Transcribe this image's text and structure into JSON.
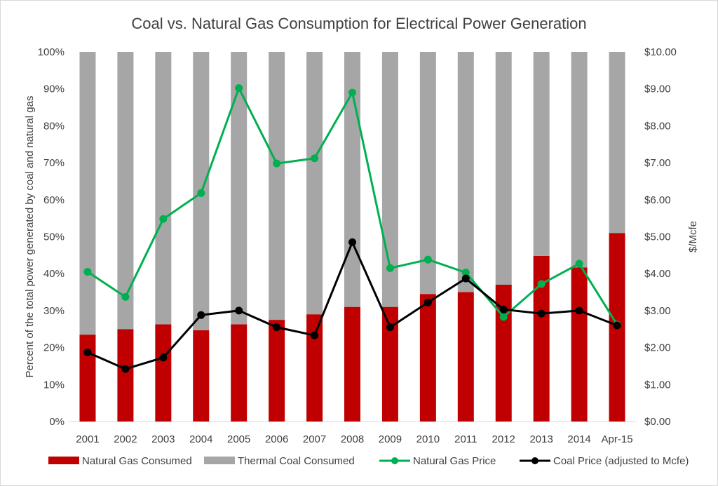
{
  "chart_data": {
    "type": "bar",
    "title": "Coal vs. Natural Gas Consumption  for Electrical Power Generation",
    "categories": [
      "2001",
      "2002",
      "2003",
      "2004",
      "2005",
      "2006",
      "2007",
      "2008",
      "2009",
      "2010",
      "2011",
      "2012",
      "2013",
      "2014",
      "Apr-15"
    ],
    "ylabel_left": "Percent of the total power generated by coal and natural gas",
    "ylabel_right": "$/Mcfe",
    "ylim_left": [
      0,
      100
    ],
    "ylim_right": [
      0,
      10
    ],
    "yticks_left": [
      "0%",
      "10%",
      "20%",
      "30%",
      "40%",
      "50%",
      "60%",
      "70%",
      "80%",
      "90%",
      "100%"
    ],
    "yticks_right": [
      "$0.00",
      "$1.00",
      "$2.00",
      "$3.00",
      "$4.00",
      "$5.00",
      "$6.00",
      "$7.00",
      "$8.00",
      "$9.00",
      "$10.00"
    ],
    "stacked": true,
    "grid": false,
    "legend_position": "bottom",
    "series": [
      {
        "name": "Natural Gas Consumed",
        "kind": "bar",
        "axis": "left",
        "color": "#c00000",
        "values": [
          23.5,
          25,
          26.3,
          24.7,
          26.3,
          27.5,
          29,
          31,
          31,
          34.5,
          35,
          37,
          44.8,
          41.7,
          51
        ]
      },
      {
        "name": "Thermal Coal Consumed",
        "kind": "bar",
        "axis": "left",
        "color": "#a6a6a6",
        "values": [
          76.5,
          75,
          73.7,
          75.3,
          73.7,
          72.5,
          71,
          69,
          69,
          65.5,
          65,
          63,
          55.2,
          58.3,
          49
        ]
      },
      {
        "name": "Natural Gas Price",
        "kind": "line",
        "axis": "right",
        "color": "#00b050",
        "values": [
          4.05,
          3.37,
          5.48,
          6.18,
          9.02,
          6.98,
          7.12,
          8.9,
          4.15,
          4.38,
          4.03,
          2.83,
          3.72,
          4.27,
          2.62
        ]
      },
      {
        "name": "Coal Price (adjusted to Mcfe)",
        "kind": "line",
        "axis": "right",
        "color": "#000000",
        "values": [
          1.87,
          1.42,
          1.73,
          2.88,
          3.0,
          2.55,
          2.33,
          4.85,
          2.55,
          3.22,
          3.87,
          3.03,
          2.92,
          3.0,
          2.6
        ]
      }
    ]
  }
}
